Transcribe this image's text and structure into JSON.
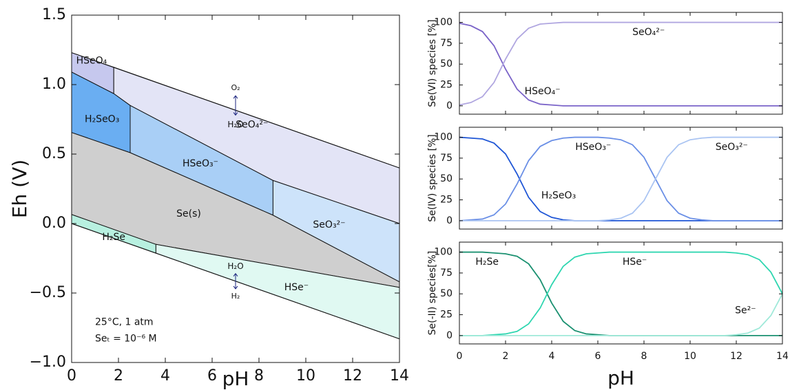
{
  "chart_data": [
    {
      "type": "polygon",
      "xlabel": "pH",
      "ylabel": "Eh (V)",
      "xlim": [
        0,
        14
      ],
      "ylim": [
        -1,
        1.5
      ],
      "xticks": [
        0,
        2,
        4,
        6,
        8,
        10,
        12,
        14
      ],
      "yticks": [
        {
          "value": -1,
          "label": "−1.0"
        },
        {
          "value": -0.5,
          "label": "−0.5"
        },
        {
          "value": 0,
          "label": "0.0"
        },
        {
          "value": 0.5,
          "label": "0.5"
        },
        {
          "value": 1,
          "label": "1.0"
        },
        {
          "value": 1.5,
          "label": "1.5"
        }
      ],
      "series": [
        {
          "name": "HSeO₄",
          "color": "#c6c8ee",
          "x": [
            0,
            1.8,
            1.8,
            0
          ],
          "y": [
            1.23,
            1.125,
            0.935,
            1.09
          ]
        },
        {
          "name": "SeO₄²⁻",
          "color": "#e3e4f6",
          "x": [
            1.8,
            14,
            14,
            8.6,
            2.5,
            1.8
          ],
          "y": [
            1.125,
            0.4,
            0.0,
            0.31,
            0.85,
            0.935
          ]
        },
        {
          "name": "H₂SeO₃",
          "color": "#6aaef2",
          "x": [
            0,
            1.8,
            2.5,
            2.5,
            0
          ],
          "y": [
            1.09,
            0.935,
            0.85,
            0.51,
            0.655
          ]
        },
        {
          "name": "HSeO₃⁻",
          "color": "#a9cff6",
          "x": [
            2.5,
            8.6,
            8.6,
            2.5
          ],
          "y": [
            0.85,
            0.31,
            0.06,
            0.51
          ]
        },
        {
          "name": "SeO₃²⁻",
          "color": "#cde3fa",
          "x": [
            8.6,
            14,
            14,
            8.6
          ],
          "y": [
            0.31,
            0.0,
            -0.42,
            0.06
          ]
        },
        {
          "name": "Se(s)",
          "color": "#cfcfcf",
          "x": [
            0,
            2.5,
            8.6,
            14,
            14,
            3.6,
            0
          ],
          "y": [
            0.655,
            0.51,
            0.06,
            -0.42,
            -0.46,
            -0.15,
            0.065
          ]
        },
        {
          "name": "H₂Se",
          "color": "#b8f0e0",
          "x": [
            0,
            3.6,
            3.6,
            0
          ],
          "y": [
            0.065,
            -0.15,
            -0.213,
            0
          ]
        },
        {
          "name": "HSe⁻",
          "color": "#e0f9f2",
          "x": [
            3.6,
            14,
            14,
            3.6
          ],
          "y": [
            -0.15,
            -0.46,
            -0.83,
            -0.213
          ]
        }
      ],
      "lines": [
        {
          "x": [
            0,
            14
          ],
          "y": [
            1.23,
            0.4
          ]
        },
        {
          "x": [
            0,
            14
          ],
          "y": [
            0,
            -0.83
          ]
        }
      ],
      "annotations": [
        "O₂",
        "H₂O",
        "H₂O",
        "H₂",
        "25°C, 1 atm",
        "Seₜ = 10⁻⁶ M"
      ]
    },
    {
      "type": "line",
      "ylabel": "Se(VI) species [%]",
      "xlim": [
        0,
        14
      ],
      "ylim": [
        -10,
        112
      ],
      "yticks": [
        0,
        25,
        50,
        75,
        100
      ],
      "x": [
        0,
        0.5,
        1,
        1.5,
        2,
        2.5,
        3,
        3.5,
        4,
        4.5,
        5,
        5.5,
        6,
        6.5,
        7,
        7.5,
        8,
        8.5,
        9,
        9.5,
        10,
        10.5,
        11,
        11.5,
        12,
        12.5,
        13,
        13.5,
        14
      ],
      "series": [
        {
          "name": "HSeO₄⁻",
          "color": "#7a63c8",
          "values": [
            99,
            96,
            89,
            72,
            44,
            20,
            7,
            2,
            1,
            0,
            0,
            0,
            0,
            0,
            0,
            0,
            0,
            0,
            0,
            0,
            0,
            0,
            0,
            0,
            0,
            0,
            0,
            0,
            0
          ]
        },
        {
          "name": "SeO₄²⁻",
          "color": "#b0a6e0",
          "values": [
            1,
            4,
            11,
            28,
            56,
            80,
            93,
            98,
            99,
            100,
            100,
            100,
            100,
            100,
            100,
            100,
            100,
            100,
            100,
            100,
            100,
            100,
            100,
            100,
            100,
            100,
            100,
            100,
            100
          ]
        }
      ]
    },
    {
      "type": "line",
      "ylabel": "Se(IV) species [%]",
      "xlim": [
        0,
        14
      ],
      "ylim": [
        -10,
        112
      ],
      "yticks": [
        0,
        25,
        50,
        75,
        100
      ],
      "x": [
        0,
        0.5,
        1,
        1.5,
        2,
        2.5,
        3,
        3.5,
        4,
        4.5,
        5,
        5.5,
        6,
        6.5,
        7,
        7.5,
        8,
        8.5,
        9,
        9.5,
        10,
        10.5,
        11,
        11.5,
        12,
        12.5,
        13,
        13.5,
        14
      ],
      "series": [
        {
          "name": "H₂SeO₃",
          "color": "#1f56d6",
          "values": [
            100,
            99,
            98,
            93,
            80,
            56,
            28,
            11,
            4,
            1,
            0,
            0,
            0,
            0,
            0,
            0,
            0,
            0,
            0,
            0,
            0,
            0,
            0,
            0,
            0,
            0,
            0,
            0,
            0
          ]
        },
        {
          "name": "HSeO₃⁻",
          "color": "#6a8fe6",
          "values": [
            0,
            1,
            2,
            7,
            20,
            44,
            72,
            89,
            96,
            99,
            100,
            100,
            100,
            99,
            97,
            91,
            76,
            50,
            24,
            9,
            3,
            1,
            0,
            0,
            0,
            0,
            0,
            0,
            0
          ]
        },
        {
          "name": "SeO₃²⁻",
          "color": "#aac4f2",
          "values": [
            0,
            0,
            0,
            0,
            0,
            0,
            0,
            0,
            0,
            0,
            0,
            0,
            0,
            1,
            3,
            9,
            24,
            50,
            76,
            91,
            97,
            99,
            100,
            100,
            100,
            100,
            100,
            100,
            100
          ]
        }
      ]
    },
    {
      "type": "line",
      "ylabel": "Se(-II) species[%]",
      "xlabel": "pH",
      "xlim": [
        0,
        14
      ],
      "ylim": [
        -10,
        112
      ],
      "yticks": [
        0,
        25,
        50,
        75,
        100
      ],
      "xticks": [
        0,
        2,
        4,
        6,
        8,
        10,
        12,
        14
      ],
      "x": [
        0,
        0.5,
        1,
        1.5,
        2,
        2.5,
        3,
        3.5,
        4,
        4.5,
        5,
        5.5,
        6,
        6.5,
        7,
        7.5,
        8,
        8.5,
        9,
        9.5,
        10,
        10.5,
        11,
        11.5,
        12,
        12.5,
        13,
        13.5,
        14
      ],
      "series": [
        {
          "name": "H₂Se",
          "color": "#1a9070",
          "values": [
            100,
            100,
            100,
            99,
            98,
            95,
            86,
            67,
            39,
            17,
            6,
            2,
            1,
            0,
            0,
            0,
            0,
            0,
            0,
            0,
            0,
            0,
            0,
            0,
            0,
            0,
            0,
            0,
            0
          ]
        },
        {
          "name": "HSe⁻",
          "color": "#2ed6b0",
          "values": [
            0,
            0,
            0,
            1,
            2,
            5,
            14,
            33,
            61,
            83,
            94,
            98,
            99,
            100,
            100,
            100,
            100,
            100,
            100,
            100,
            100,
            100,
            100,
            100,
            99,
            97,
            91,
            76,
            50
          ]
        },
        {
          "name": "Se²⁻",
          "color": "#9fe9d9",
          "values": [
            0,
            0,
            0,
            0,
            0,
            0,
            0,
            0,
            0,
            0,
            0,
            0,
            0,
            0,
            0,
            0,
            0,
            0,
            0,
            0,
            0,
            0,
            0,
            0,
            1,
            3,
            9,
            24,
            50
          ]
        }
      ]
    }
  ]
}
